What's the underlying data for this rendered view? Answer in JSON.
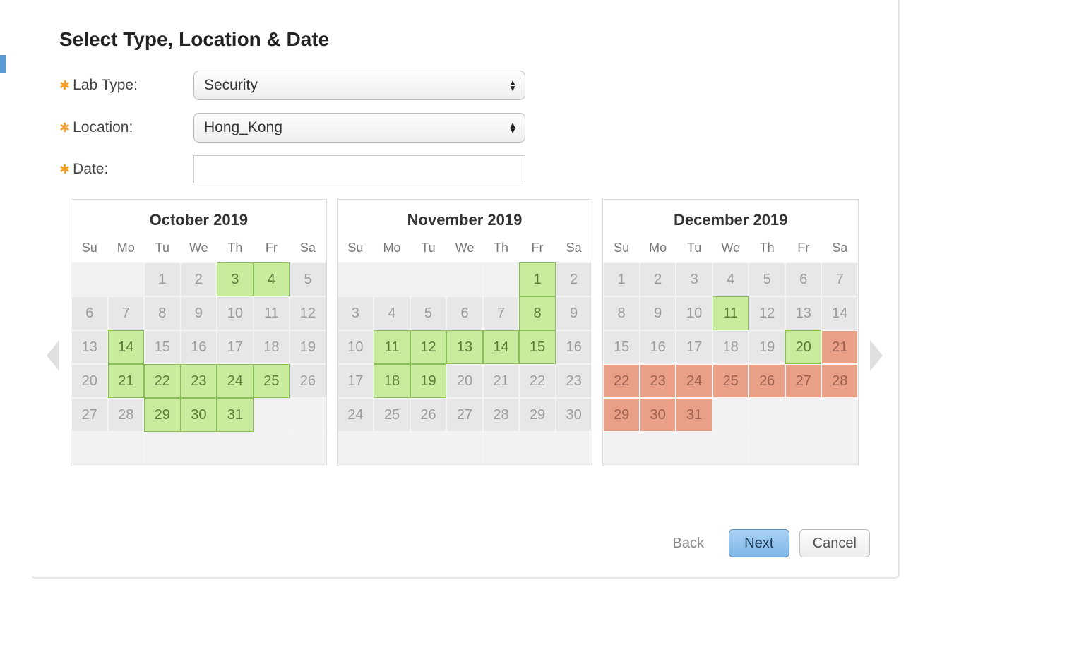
{
  "title": "Select Type, Location & Date",
  "form": {
    "labType": {
      "label": "Lab Type:",
      "value": "Security"
    },
    "location": {
      "label": "Location:",
      "value": "Hong_Kong"
    },
    "date": {
      "label": "Date:",
      "value": ""
    }
  },
  "dayHeaders": [
    "Su",
    "Mo",
    "Tu",
    "We",
    "Th",
    "Fr",
    "Sa"
  ],
  "colors": {
    "available": "#c9eb9e",
    "availableBorder": "#88c057",
    "closed": "#e9a086",
    "disabled": "#e7e7e7",
    "accent": "#5b9bd5",
    "primaryBtn": "#7eb6e6"
  },
  "buttons": {
    "back": "Back",
    "next": "Next",
    "cancel": "Cancel"
  },
  "calendars": [
    {
      "title": "October 2019",
      "cells": [
        {
          "d": "",
          "s": "empty"
        },
        {
          "d": "",
          "s": "empty"
        },
        {
          "d": 1,
          "s": "disabled"
        },
        {
          "d": 2,
          "s": "disabled"
        },
        {
          "d": 3,
          "s": "avail"
        },
        {
          "d": 4,
          "s": "avail"
        },
        {
          "d": 5,
          "s": "disabled"
        },
        {
          "d": 6,
          "s": "disabled"
        },
        {
          "d": 7,
          "s": "disabled"
        },
        {
          "d": 8,
          "s": "disabled"
        },
        {
          "d": 9,
          "s": "disabled"
        },
        {
          "d": 10,
          "s": "disabled"
        },
        {
          "d": 11,
          "s": "disabled"
        },
        {
          "d": 12,
          "s": "disabled"
        },
        {
          "d": 13,
          "s": "disabled"
        },
        {
          "d": 14,
          "s": "avail"
        },
        {
          "d": 15,
          "s": "disabled"
        },
        {
          "d": 16,
          "s": "disabled"
        },
        {
          "d": 17,
          "s": "disabled"
        },
        {
          "d": 18,
          "s": "disabled"
        },
        {
          "d": 19,
          "s": "disabled"
        },
        {
          "d": 20,
          "s": "disabled"
        },
        {
          "d": 21,
          "s": "avail"
        },
        {
          "d": 22,
          "s": "avail"
        },
        {
          "d": 23,
          "s": "avail"
        },
        {
          "d": 24,
          "s": "avail"
        },
        {
          "d": 25,
          "s": "avail"
        },
        {
          "d": 26,
          "s": "disabled"
        },
        {
          "d": 27,
          "s": "disabled"
        },
        {
          "d": 28,
          "s": "disabled"
        },
        {
          "d": 29,
          "s": "avail"
        },
        {
          "d": 30,
          "s": "avail"
        },
        {
          "d": 31,
          "s": "avail"
        },
        {
          "d": "",
          "s": "empty"
        },
        {
          "d": "",
          "s": "empty"
        },
        {
          "d": "",
          "s": "empty"
        },
        {
          "d": "",
          "s": "empty"
        },
        {
          "d": "",
          "s": "empty"
        },
        {
          "d": "",
          "s": "empty"
        },
        {
          "d": "",
          "s": "empty"
        },
        {
          "d": "",
          "s": "empty"
        },
        {
          "d": "",
          "s": "empty"
        }
      ]
    },
    {
      "title": "November 2019",
      "cells": [
        {
          "d": "",
          "s": "empty"
        },
        {
          "d": "",
          "s": "empty"
        },
        {
          "d": "",
          "s": "empty"
        },
        {
          "d": "",
          "s": "empty"
        },
        {
          "d": "",
          "s": "empty"
        },
        {
          "d": 1,
          "s": "avail"
        },
        {
          "d": 2,
          "s": "disabled"
        },
        {
          "d": 3,
          "s": "disabled"
        },
        {
          "d": 4,
          "s": "disabled"
        },
        {
          "d": 5,
          "s": "disabled"
        },
        {
          "d": 6,
          "s": "disabled"
        },
        {
          "d": 7,
          "s": "disabled"
        },
        {
          "d": 8,
          "s": "avail"
        },
        {
          "d": 9,
          "s": "disabled"
        },
        {
          "d": 10,
          "s": "disabled"
        },
        {
          "d": 11,
          "s": "avail"
        },
        {
          "d": 12,
          "s": "avail"
        },
        {
          "d": 13,
          "s": "avail"
        },
        {
          "d": 14,
          "s": "avail"
        },
        {
          "d": 15,
          "s": "avail"
        },
        {
          "d": 16,
          "s": "disabled"
        },
        {
          "d": 17,
          "s": "disabled"
        },
        {
          "d": 18,
          "s": "avail"
        },
        {
          "d": 19,
          "s": "avail"
        },
        {
          "d": 20,
          "s": "disabled"
        },
        {
          "d": 21,
          "s": "disabled"
        },
        {
          "d": 22,
          "s": "disabled"
        },
        {
          "d": 23,
          "s": "disabled"
        },
        {
          "d": 24,
          "s": "disabled"
        },
        {
          "d": 25,
          "s": "disabled"
        },
        {
          "d": 26,
          "s": "disabled"
        },
        {
          "d": 27,
          "s": "disabled"
        },
        {
          "d": 28,
          "s": "disabled"
        },
        {
          "d": 29,
          "s": "disabled"
        },
        {
          "d": 30,
          "s": "disabled"
        },
        {
          "d": "",
          "s": "empty"
        },
        {
          "d": "",
          "s": "empty"
        },
        {
          "d": "",
          "s": "empty"
        },
        {
          "d": "",
          "s": "empty"
        },
        {
          "d": "",
          "s": "empty"
        },
        {
          "d": "",
          "s": "empty"
        },
        {
          "d": "",
          "s": "empty"
        }
      ]
    },
    {
      "title": "December 2019",
      "cells": [
        {
          "d": 1,
          "s": "disabled"
        },
        {
          "d": 2,
          "s": "disabled"
        },
        {
          "d": 3,
          "s": "disabled"
        },
        {
          "d": 4,
          "s": "disabled"
        },
        {
          "d": 5,
          "s": "disabled"
        },
        {
          "d": 6,
          "s": "disabled"
        },
        {
          "d": 7,
          "s": "disabled"
        },
        {
          "d": 8,
          "s": "disabled"
        },
        {
          "d": 9,
          "s": "disabled"
        },
        {
          "d": 10,
          "s": "disabled"
        },
        {
          "d": 11,
          "s": "avail"
        },
        {
          "d": 12,
          "s": "disabled"
        },
        {
          "d": 13,
          "s": "disabled"
        },
        {
          "d": 14,
          "s": "disabled"
        },
        {
          "d": 15,
          "s": "disabled"
        },
        {
          "d": 16,
          "s": "disabled"
        },
        {
          "d": 17,
          "s": "disabled"
        },
        {
          "d": 18,
          "s": "disabled"
        },
        {
          "d": 19,
          "s": "disabled"
        },
        {
          "d": 20,
          "s": "avail"
        },
        {
          "d": 21,
          "s": "closed"
        },
        {
          "d": 22,
          "s": "closed"
        },
        {
          "d": 23,
          "s": "closed"
        },
        {
          "d": 24,
          "s": "closed"
        },
        {
          "d": 25,
          "s": "closed"
        },
        {
          "d": 26,
          "s": "closed"
        },
        {
          "d": 27,
          "s": "closed"
        },
        {
          "d": 28,
          "s": "closed"
        },
        {
          "d": 29,
          "s": "closed"
        },
        {
          "d": 30,
          "s": "closed"
        },
        {
          "d": 31,
          "s": "closed"
        },
        {
          "d": "",
          "s": "empty"
        },
        {
          "d": "",
          "s": "empty"
        },
        {
          "d": "",
          "s": "empty"
        },
        {
          "d": "",
          "s": "empty"
        },
        {
          "d": "",
          "s": "empty"
        },
        {
          "d": "",
          "s": "empty"
        },
        {
          "d": "",
          "s": "empty"
        },
        {
          "d": "",
          "s": "empty"
        },
        {
          "d": "",
          "s": "empty"
        },
        {
          "d": "",
          "s": "empty"
        },
        {
          "d": "",
          "s": "empty"
        }
      ]
    }
  ]
}
